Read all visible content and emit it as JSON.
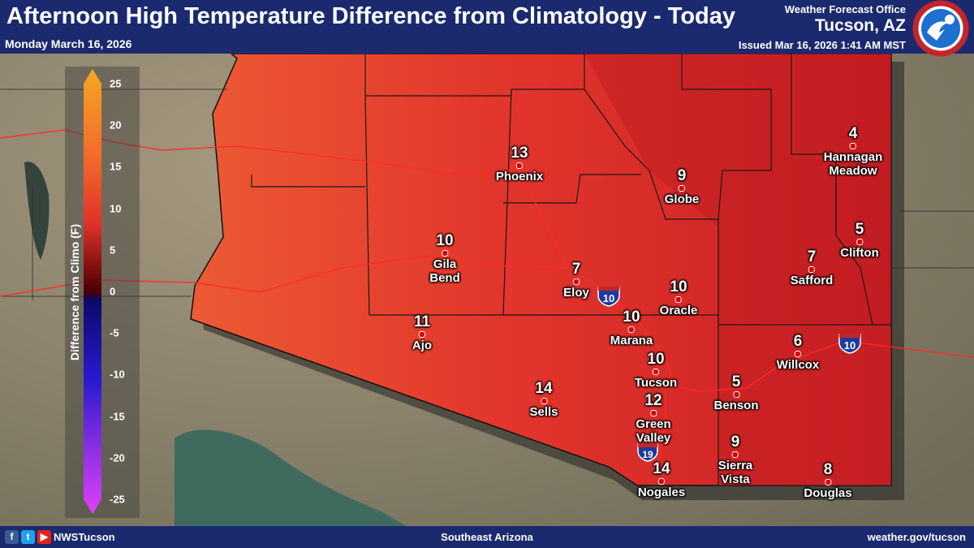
{
  "header": {
    "title": "Afternoon High Temperature Difference from Climatology - Today",
    "date": "Monday March 16, 2026",
    "office_line1": "Weather Forecast Office",
    "office_line2": "Tucson, AZ",
    "issued": "Issued Mar 16, 2026 1:41 AM MST",
    "logo_text": "NATIONAL WEATHER SERVICE"
  },
  "legend": {
    "label": "Difference from Climo (F)",
    "ticks": [
      "25",
      "20",
      "15",
      "10",
      "5",
      "0",
      "-5",
      "-10",
      "-15",
      "-20",
      "-25"
    ]
  },
  "cities": [
    {
      "name": "Phoenix",
      "value": "13"
    },
    {
      "name": "Globe",
      "value": "9"
    },
    {
      "name": "Hannagan Meadow",
      "value": "4"
    },
    {
      "name": "Gila Bend",
      "value": "10"
    },
    {
      "name": "Clifton",
      "value": "5"
    },
    {
      "name": "Eloy",
      "value": "7"
    },
    {
      "name": "Safford",
      "value": "7"
    },
    {
      "name": "Oracle",
      "value": "10"
    },
    {
      "name": "Ajo",
      "value": "11"
    },
    {
      "name": "Marana",
      "value": "10"
    },
    {
      "name": "Willcox",
      "value": "6"
    },
    {
      "name": "Tucson",
      "value": "10"
    },
    {
      "name": "Benson",
      "value": "5"
    },
    {
      "name": "Sells",
      "value": "14"
    },
    {
      "name": "Green Valley",
      "value": "12"
    },
    {
      "name": "Sierra Vista",
      "value": "9"
    },
    {
      "name": "Nogales",
      "value": "14"
    },
    {
      "name": "Douglas",
      "value": "8"
    }
  ],
  "highways": {
    "i10_west": "10",
    "i10_east": "10",
    "i19": "19"
  },
  "footer": {
    "handle": "NWSTucson",
    "region": "Southeast Arizona",
    "url": "weather.gov/tucson"
  },
  "colors": {
    "header_bg": "#1b2a6e",
    "anomaly_fill": "#e0302a",
    "legend_top": "#f5a623",
    "legend_bottom": "#e040fb"
  }
}
